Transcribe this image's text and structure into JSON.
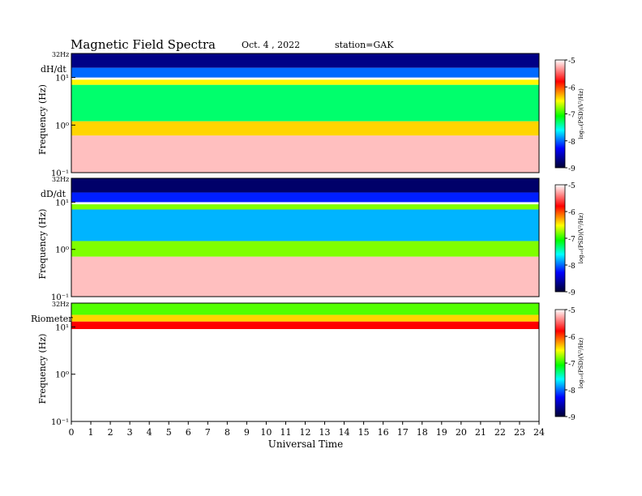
{
  "header": {
    "title": "Magnetic  Field  Spectra",
    "date": "Oct. 4  , 2022",
    "station": "station=GAK"
  },
  "x_axis": {
    "label": "Universal Time",
    "ticks": [
      "0",
      "1",
      "2",
      "3",
      "4",
      "5",
      "6",
      "7",
      "8",
      "9",
      "10",
      "11",
      "12",
      "13",
      "14",
      "15",
      "16",
      "17",
      "18",
      "19",
      "20",
      "21",
      "22",
      "23",
      "24"
    ]
  },
  "colorbar": {
    "label": "log₁₀(PSD)(V²/Hz)",
    "ticks": [
      "-5",
      "-6",
      "-7",
      "-8",
      "-9"
    ]
  },
  "panels": [
    {
      "name": "dH/dt",
      "top_label": "32Hz",
      "ylabel": "Frequency (Hz)",
      "yticks": [
        "10¹",
        "10⁰",
        "10⁻¹"
      ]
    },
    {
      "name": "dD/dt",
      "top_label": "32Hz",
      "ylabel": "Frequency (Hz)",
      "yticks": [
        "10¹",
        "10⁰",
        "10⁻¹"
      ]
    },
    {
      "name": "Riometer",
      "top_label": "32Hz",
      "ylabel": "Frequency (Hz)",
      "yticks": [
        "10¹",
        "10⁰",
        "10⁻¹"
      ]
    }
  ],
  "chart_data": [
    {
      "type": "heatmap",
      "title": "dH/dt",
      "xlabel": "Universal Time",
      "ylabel": "Frequency (Hz)",
      "xlim": [
        0,
        24
      ],
      "ylim": [
        0.1,
        32
      ],
      "yscale": "log",
      "colorbar_range": [
        -9,
        -5
      ],
      "colorscale": [
        "#000030",
        "#0000ff",
        "#00ffff",
        "#00ff00",
        "#ffff00",
        "#ff0000",
        "#ffffff"
      ],
      "bands_log10psd": [
        {
          "freq_range": [
            16,
            32
          ],
          "value": -8.7
        },
        {
          "freq_range": [
            10,
            16
          ],
          "value": -8.0
        },
        {
          "freq_range": [
            7,
            9
          ],
          "value": -6.5
        },
        {
          "freq_range": [
            1.2,
            7
          ],
          "value": -7.3
        },
        {
          "freq_range": [
            0.6,
            1.2
          ],
          "value": -6.4
        },
        {
          "freq_range": [
            0.1,
            0.6
          ],
          "value": -5.2
        }
      ]
    },
    {
      "type": "heatmap",
      "title": "dD/dt",
      "xlabel": "Universal Time",
      "ylabel": "Frequency (Hz)",
      "xlim": [
        0,
        24
      ],
      "ylim": [
        0.1,
        32
      ],
      "yscale": "log",
      "colorbar_range": [
        -9,
        -5
      ],
      "colorscale": [
        "#000030",
        "#0000ff",
        "#00ffff",
        "#00ff00",
        "#ffff00",
        "#ff0000",
        "#ffffff"
      ],
      "bands_log10psd": [
        {
          "freq_range": [
            16,
            32
          ],
          "value": -8.8
        },
        {
          "freq_range": [
            10,
            16
          ],
          "value": -8.2
        },
        {
          "freq_range": [
            7,
            9
          ],
          "value": -6.8
        },
        {
          "freq_range": [
            1.5,
            7
          ],
          "value": -7.8
        },
        {
          "freq_range": [
            0.7,
            1.5
          ],
          "value": -6.8
        },
        {
          "freq_range": [
            0.1,
            0.7
          ],
          "value": -5.2
        }
      ]
    },
    {
      "type": "heatmap",
      "title": "Riometer",
      "xlabel": "Universal Time",
      "ylabel": "Frequency (Hz)",
      "xlim": [
        0,
        24
      ],
      "ylim": [
        0.1,
        32
      ],
      "yscale": "log",
      "colorbar_range": [
        -9,
        -5
      ],
      "colorscale": [
        "#000030",
        "#0000ff",
        "#00ffff",
        "#00ff00",
        "#ffff00",
        "#ff0000",
        "#ffffff"
      ],
      "bands_log10psd": [
        {
          "freq_range": [
            18,
            32
          ],
          "value": -6.9
        },
        {
          "freq_range": [
            13,
            18
          ],
          "value": -6.4
        },
        {
          "freq_range": [
            9,
            13
          ],
          "value": -5.8
        },
        {
          "freq_range": [
            0.1,
            9
          ],
          "value": -5.0
        }
      ]
    }
  ]
}
